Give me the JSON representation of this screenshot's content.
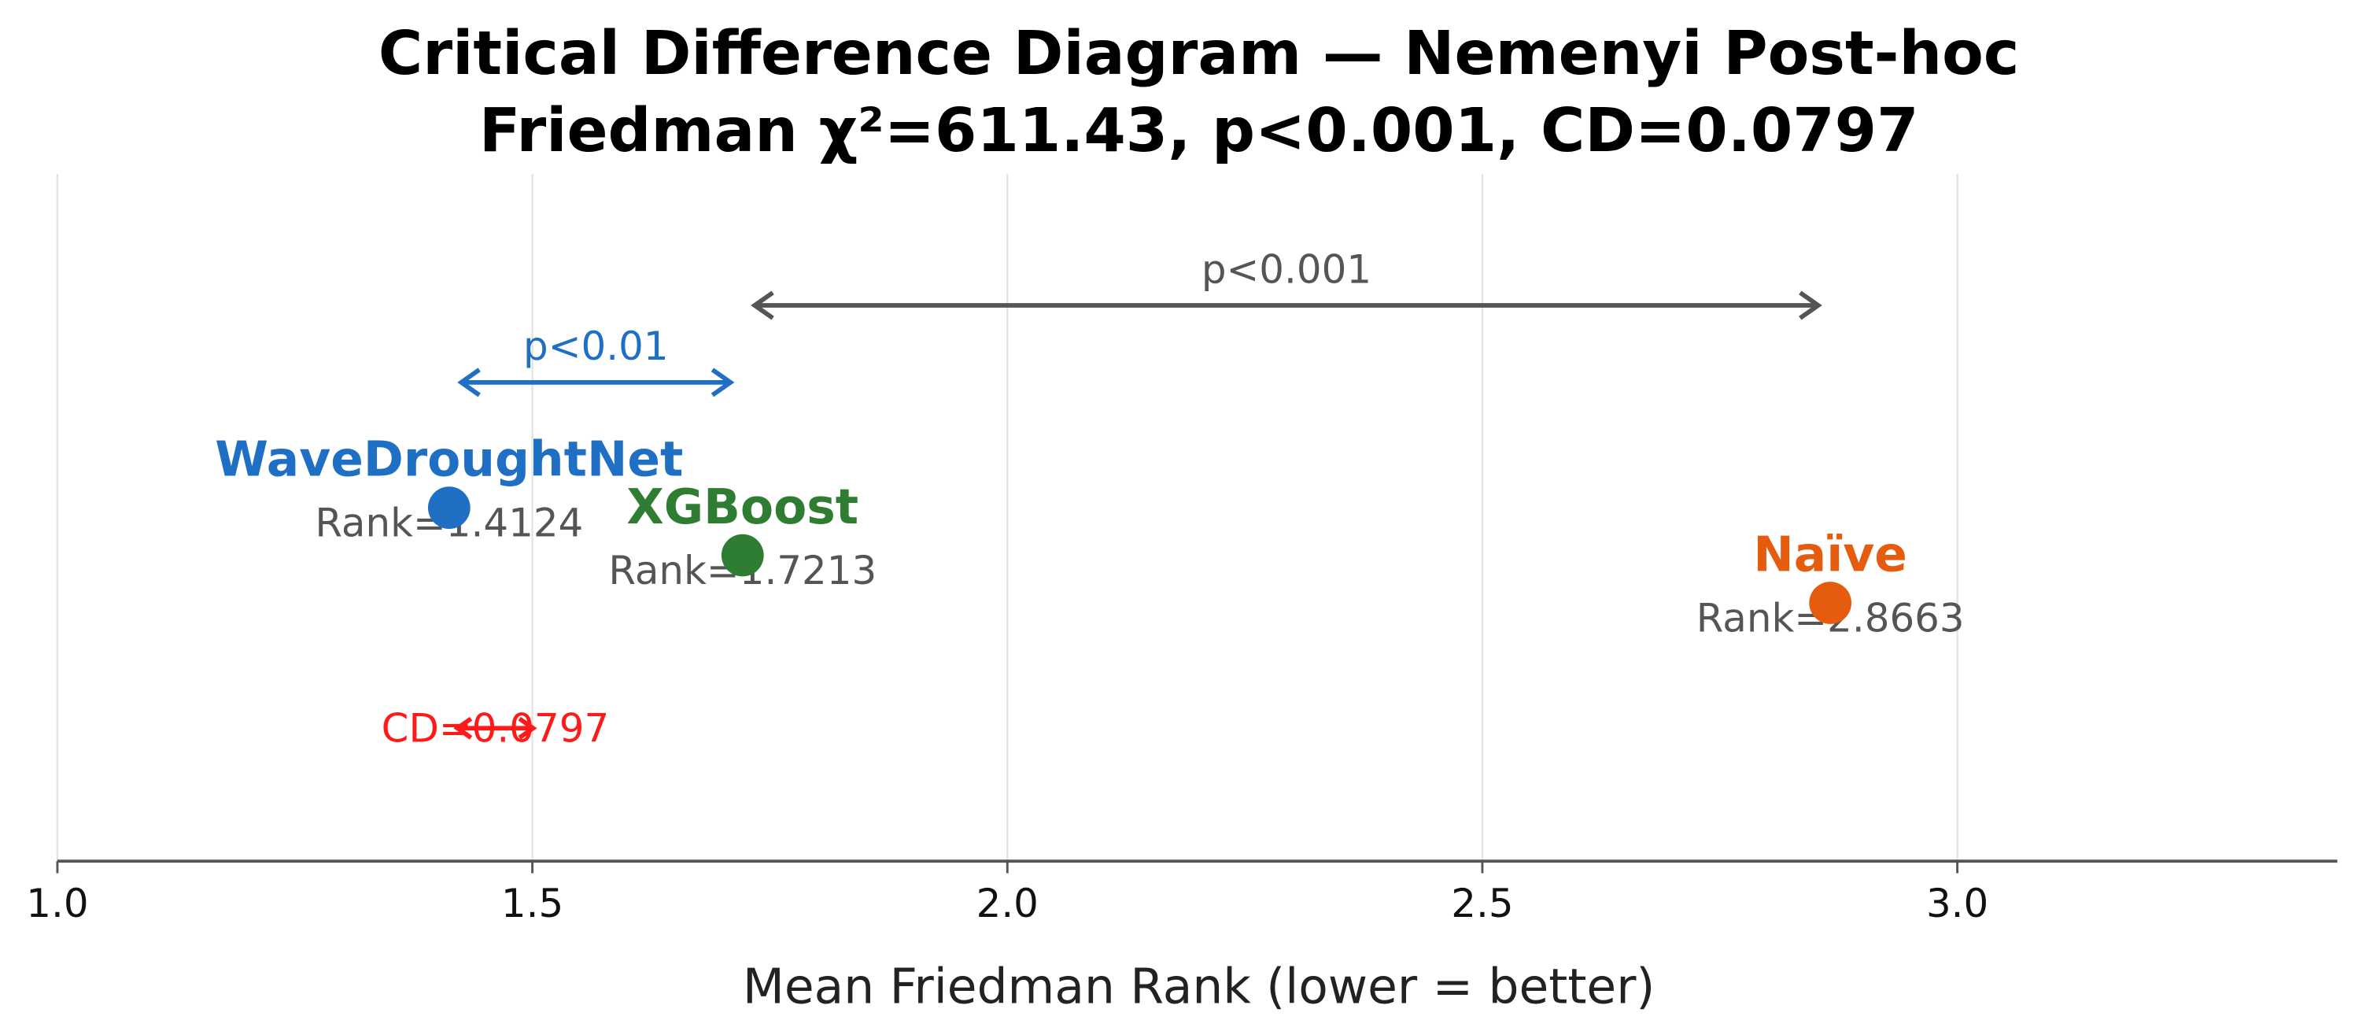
{
  "chart_data": {
    "type": "cd-diagram",
    "title": "Critical Difference Diagram — Nemenyi Post-hoc",
    "subtitle": "Friedman χ²=611.43, p<0.001,  CD=0.0797",
    "x_label": "Mean Friedman Rank  (lower = better)",
    "xlim": [
      1.0,
      3.4
    ],
    "xticks": [
      {
        "value": 1.0,
        "label": "1.0"
      },
      1.5,
      {
        "value": 2.0,
        "label": "2.0"
      },
      2.5,
      {
        "value": 3.0,
        "label": "3.0"
      }
    ],
    "grid": true,
    "series": [
      {
        "name": "WaveDroughtNet",
        "color": "#1f6fc5",
        "value": 1.4124,
        "value_label": "Rank=1.4124"
      },
      {
        "name": "XGBoost",
        "color": "#2e7d32",
        "value": 1.7213,
        "value_label": "Rank=1.7213"
      },
      {
        "name": "Naïve",
        "color": "#e65c0f",
        "value": 2.8663,
        "value_label": "Rank=2.8663"
      }
    ],
    "comparisons": [
      {
        "label": "p<0.01",
        "color": "#1f6fc5"
      },
      {
        "label": "p<0.001",
        "color": "#555555"
      }
    ],
    "cd": {
      "value": 0.0797,
      "label": "CD=0.0797",
      "color": "#ff1a1a"
    }
  }
}
